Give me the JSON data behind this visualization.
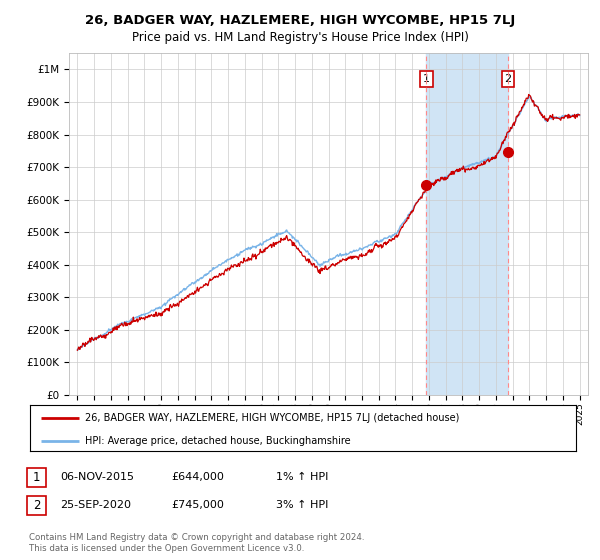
{
  "title": "26, BADGER WAY, HAZLEMERE, HIGH WYCOMBE, HP15 7LJ",
  "subtitle": "Price paid vs. HM Land Registry's House Price Index (HPI)",
  "ylim": [
    0,
    1050000
  ],
  "yticks": [
    0,
    100000,
    200000,
    300000,
    400000,
    500000,
    600000,
    700000,
    800000,
    900000,
    1000000
  ],
  "ytick_labels": [
    "£0",
    "£100K",
    "£200K",
    "£300K",
    "£400K",
    "£500K",
    "£600K",
    "£700K",
    "£800K",
    "£900K",
    "£1M"
  ],
  "hpi_color": "#7ab4e8",
  "price_color": "#cc0000",
  "sale1_date": 2015.85,
  "sale1_price": 644000,
  "sale2_date": 2020.73,
  "sale2_price": 745000,
  "vline_color": "#ff8888",
  "span_color": "#d0e4f5",
  "legend_label_price": "26, BADGER WAY, HAZLEMERE, HIGH WYCOMBE, HP15 7LJ (detached house)",
  "legend_label_hpi": "HPI: Average price, detached house, Buckinghamshire",
  "annotation1_date": "06-NOV-2015",
  "annotation1_price": "£644,000",
  "annotation1_hpi": "1% ↑ HPI",
  "annotation2_date": "25-SEP-2020",
  "annotation2_price": "£745,000",
  "annotation2_hpi": "3% ↑ HPI",
  "copyright_text": "Contains HM Land Registry data © Crown copyright and database right 2024.\nThis data is licensed under the Open Government Licence v3.0.",
  "background_color": "#ffffff",
  "grid_color": "#cccccc",
  "xlim_start": 1994.5,
  "xlim_end": 2025.5,
  "title_fontsize": 9.5,
  "subtitle_fontsize": 8.5
}
